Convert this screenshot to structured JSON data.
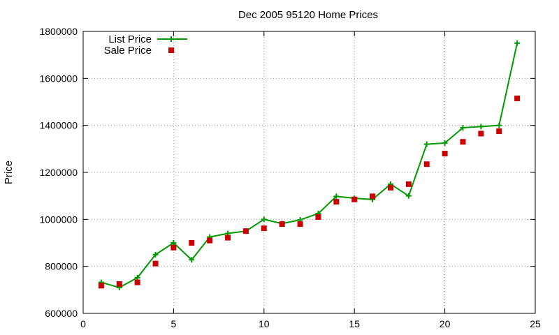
{
  "chart_data": {
    "type": "line",
    "title": "Dec 2005 95120 Home Prices",
    "xlabel": "",
    "ylabel": "Price",
    "xlim": [
      0,
      25
    ],
    "ylim": [
      600000,
      1800000
    ],
    "xticks": [
      0,
      5,
      10,
      15,
      20,
      25
    ],
    "yticks": [
      600000,
      800000,
      1000000,
      1200000,
      1400000,
      1600000,
      1800000
    ],
    "grid": true,
    "legend_position": "top-left",
    "series": [
      {
        "name": "List Price",
        "style": "line+cross",
        "color": "#009900",
        "x": [
          1,
          2,
          3,
          4,
          5,
          6,
          7,
          8,
          9,
          10,
          11,
          12,
          13,
          14,
          15,
          16,
          17,
          18,
          19,
          20,
          21,
          22,
          23,
          24
        ],
        "values": [
          732000,
          710000,
          752000,
          850000,
          900000,
          828000,
          925000,
          940000,
          950000,
          1000000,
          982000,
          998000,
          1025000,
          1098000,
          1090000,
          1085000,
          1150000,
          1100000,
          1320000,
          1325000,
          1390000,
          1395000,
          1400000,
          1750000
        ]
      },
      {
        "name": "Sale Price",
        "style": "square",
        "color": "#cc0000",
        "x": [
          1,
          2,
          3,
          4,
          5,
          6,
          7,
          8,
          9,
          10,
          11,
          12,
          13,
          14,
          15,
          16,
          17,
          18,
          19,
          20,
          21,
          22,
          23,
          24
        ],
        "values": [
          718000,
          725000,
          732000,
          812000,
          880000,
          900000,
          910000,
          922000,
          950000,
          962000,
          980000,
          980000,
          1010000,
          1075000,
          1085000,
          1098000,
          1135000,
          1150000,
          1235000,
          1280000,
          1330000,
          1365000,
          1375000,
          1515000
        ]
      }
    ]
  }
}
